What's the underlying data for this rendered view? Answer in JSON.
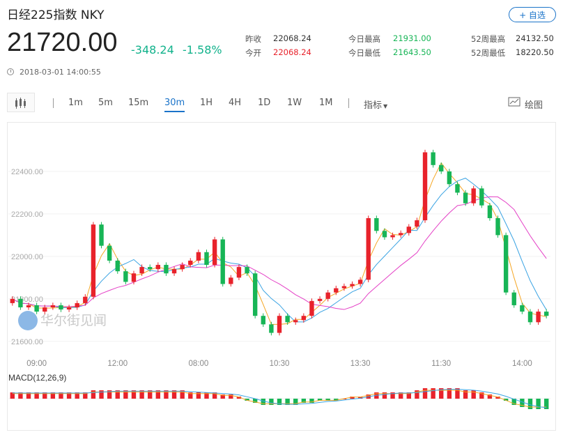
{
  "header": {
    "title": "日经225指数 NKY",
    "watch_label": "+ 自选"
  },
  "quote": {
    "price": "21720.00",
    "change": "-348.24",
    "change_pct": "-1.58%",
    "prev_close_label": "昨收",
    "prev_close": "22068.24",
    "open_label": "今开",
    "open": "22068.24",
    "high_label": "今日最高",
    "high": "21931.00",
    "low_label": "今日最低",
    "low": "21643.50",
    "w52_high_label": "52周最高",
    "w52_high": "24132.50",
    "w52_low_label": "52周最低",
    "w52_low": "18220.50",
    "timestamp": "2018-03-01 14:00:55"
  },
  "toolbar": {
    "periods": [
      "1m",
      "5m",
      "15m",
      "30m",
      "1H",
      "4H",
      "1D",
      "1W",
      "1M"
    ],
    "active_period": "30m",
    "indicator_label": "指标",
    "draw_label": "绘图"
  },
  "colors": {
    "up": "#e8222b",
    "down": "#17b556",
    "ma1": "#f5a623",
    "ma2": "#3aa3e3",
    "ma3": "#e440c6",
    "accent": "#1a73c9"
  },
  "chart_data": {
    "type": "candlestick",
    "ylim": [
      21550,
      22600
    ],
    "yticks": [
      21600,
      21800,
      22000,
      22200,
      22400
    ],
    "ytick_labels": [
      "21600.00",
      "21800.00",
      "22000.00",
      "22200.00",
      "22400.00"
    ],
    "xtick_labels": [
      "09:00",
      "12:00",
      "08:00",
      "10:30",
      "13:30",
      "11:30",
      "14:00"
    ],
    "xtick_index": [
      3,
      13,
      23,
      33,
      43,
      53,
      63
    ],
    "macd_label": "MACD(12,26,9)",
    "watermark": "华尔街见闻",
    "closes": [
      21800,
      21760,
      21770,
      21740,
      21760,
      21770,
      21750,
      21760,
      21780,
      21810,
      22150,
      22050,
      21980,
      21930,
      21880,
      21920,
      21950,
      21940,
      21960,
      21920,
      21940,
      21960,
      21980,
      22020,
      21960,
      22080,
      21870,
      21900,
      21950,
      21920,
      21720,
      21680,
      21640,
      21720,
      21690,
      21700,
      21720,
      21790,
      21800,
      21830,
      21850,
      21860,
      21870,
      21890,
      22180,
      22120,
      22090,
      22100,
      22110,
      22140,
      22170,
      22490,
      22430,
      22400,
      22340,
      22300,
      22250,
      22320,
      22240,
      22180,
      22100,
      21830,
      21770,
      21740,
      21690,
      21740,
      21720
    ],
    "macd": [
      3,
      3,
      3,
      3,
      3,
      3,
      3,
      3,
      3,
      3,
      4,
      4,
      4,
      4,
      4,
      4,
      4,
      4,
      4,
      4,
      4,
      4,
      3,
      3,
      3,
      3,
      2,
      2,
      1,
      -1,
      -2,
      -3,
      -3,
      -3,
      -3,
      -3,
      -2,
      -2,
      -1,
      -1,
      -1,
      0,
      1,
      1,
      2,
      3,
      3,
      3,
      3,
      3,
      4,
      5,
      5,
      5,
      5,
      5,
      4,
      4,
      3,
      2,
      1,
      -1,
      -3,
      -4,
      -5,
      -5,
      -5
    ]
  }
}
